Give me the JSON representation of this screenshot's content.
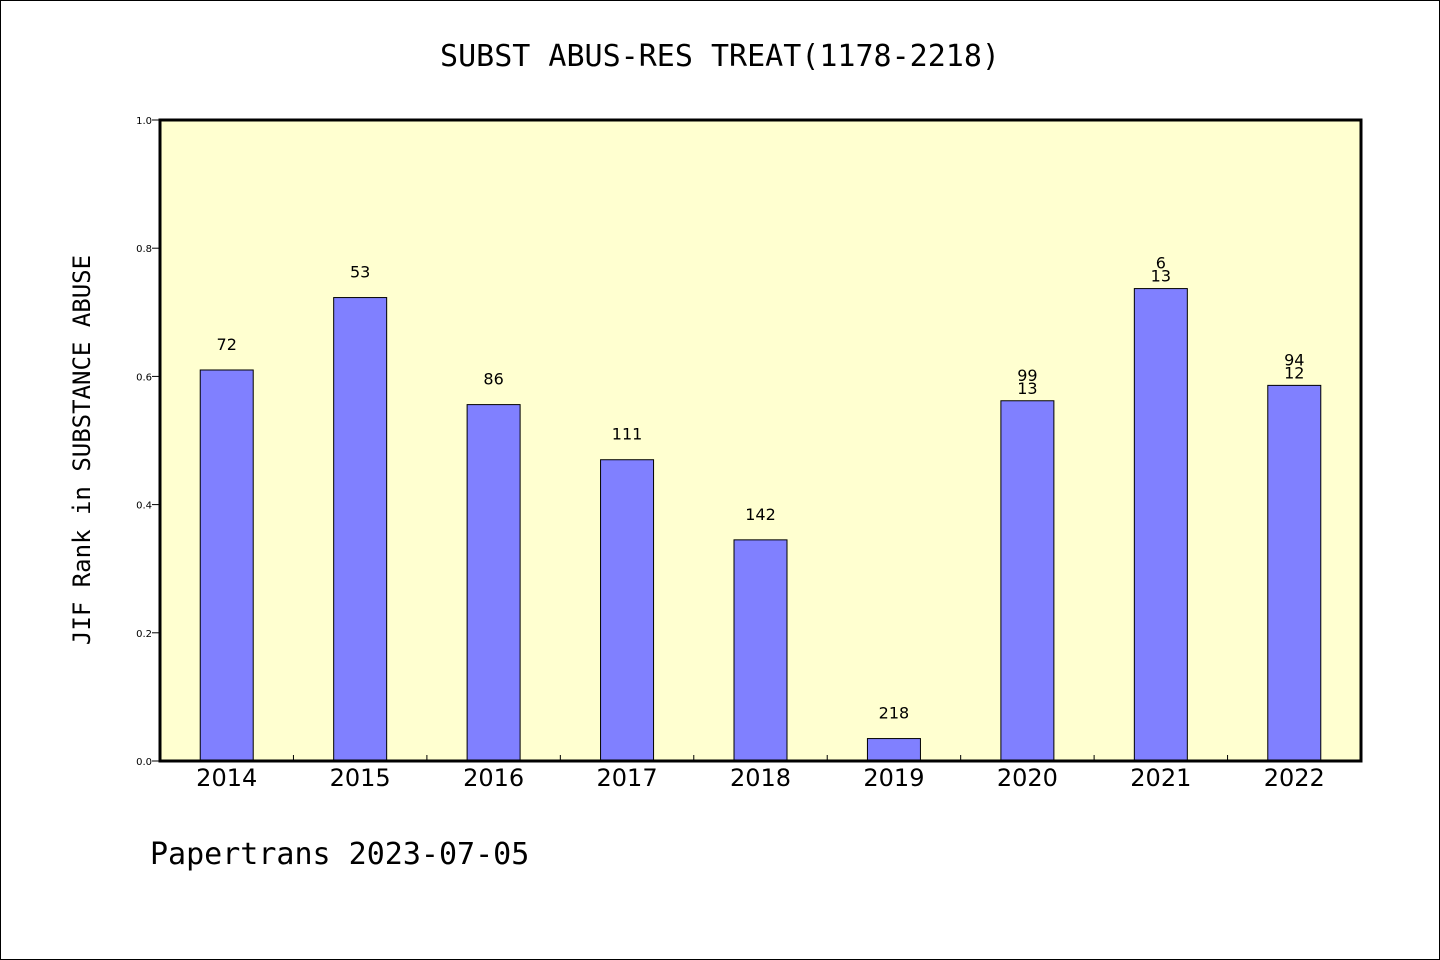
{
  "chart_data": {
    "type": "bar",
    "title": "SUBST ABUS-RES TREAT(1178-2218)",
    "xlabel": "",
    "ylabel": "JIF Rank in SUBSTANCE ABUSE",
    "categories": [
      "2014",
      "2015",
      "2016",
      "2017",
      "2018",
      "2019",
      "2020",
      "2021",
      "2022"
    ],
    "series": [
      {
        "values": [
          0.61,
          0.723,
          0.556,
          0.47,
          0.345,
          0.035,
          0.562,
          0.737,
          0.586
        ]
      }
    ],
    "data_labels": [
      [
        "72"
      ],
      [
        "53"
      ],
      [
        "86"
      ],
      [
        "111"
      ],
      [
        "142"
      ],
      [
        "218"
      ],
      [
        "99",
        "13"
      ],
      [
        "6",
        "13"
      ],
      [
        "94",
        "12"
      ]
    ],
    "ylim": [
      0,
      1.0
    ],
    "yticks": [
      "0.0",
      "0.2",
      "0.4",
      "0.6",
      "0.8",
      "1.0"
    ],
    "grid": false,
    "colors": {
      "bar": "#8080ff",
      "plot_background": "#ffffd0"
    }
  },
  "footer": "Papertrans 2023-07-05"
}
